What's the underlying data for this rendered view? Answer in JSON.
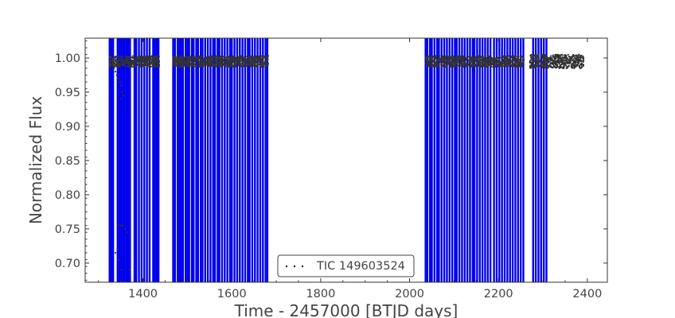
{
  "chart_data": {
    "type": "scatter",
    "title": "",
    "xlabel": "Time - 2457000 [BTJD days]",
    "ylabel": "Normalized Flux",
    "xlim": [
      1270,
      2445
    ],
    "ylim": [
      0.672,
      1.029
    ],
    "x_ticks": [
      1400,
      1600,
      1800,
      2000,
      2200,
      2400
    ],
    "y_ticks": [
      0.7,
      0.75,
      0.8,
      0.85,
      0.9,
      0.95,
      1.0
    ],
    "x_tick_labels": [
      "1400",
      "1600",
      "1800",
      "2000",
      "2200",
      "2400"
    ],
    "y_tick_labels": [
      "0.70",
      "0.75",
      "0.80",
      "0.85",
      "0.90",
      "0.95",
      "1.00"
    ],
    "grid": false,
    "legend_position": "bottom-center",
    "series": [
      {
        "name": "TIC 149603524",
        "color": "#000000",
        "marker": "dot",
        "segments": [
          {
            "x_start": 1325,
            "x_end": 1437,
            "y_center": 0.995,
            "y_spread": 0.008
          },
          {
            "x_start": 1468,
            "x_end": 1682,
            "y_center": 0.995,
            "y_spread": 0.008
          },
          {
            "x_start": 2036,
            "x_end": 2257,
            "y_center": 0.995,
            "y_spread": 0.008
          },
          {
            "x_start": 2270,
            "x_end": 2392,
            "y_center": 0.995,
            "y_spread": 0.01
          }
        ],
        "scatter_outliers": [
          {
            "x": 1335,
            "y": 0.985
          },
          {
            "x": 1338,
            "y": 0.98
          },
          {
            "x": 1341,
            "y": 0.975
          },
          {
            "x": 1345,
            "y": 0.97
          },
          {
            "x": 1348,
            "y": 0.965
          },
          {
            "x": 1351,
            "y": 0.96
          },
          {
            "x": 1353,
            "y": 0.95
          },
          {
            "x": 1356,
            "y": 0.945
          },
          {
            "x": 1350,
            "y": 0.94
          },
          {
            "x": 1345,
            "y": 0.755
          },
          {
            "x": 1350,
            "y": 0.755
          },
          {
            "x": 1355,
            "y": 0.755
          },
          {
            "x": 1360,
            "y": 0.75
          },
          {
            "x": 1365,
            "y": 0.745
          },
          {
            "x": 1342,
            "y": 0.72
          },
          {
            "x": 1346,
            "y": 0.705
          },
          {
            "x": 1352,
            "y": 0.69
          },
          {
            "x": 1370,
            "y": 0.69
          },
          {
            "x": 1338,
            "y": 0.715
          }
        ]
      }
    ],
    "vertical_lines": {
      "color": "#0000ee",
      "x": [
        1325,
        1329,
        1333,
        1343,
        1347,
        1351,
        1355,
        1359,
        1363,
        1367,
        1371,
        1381,
        1385,
        1391,
        1397,
        1403,
        1409,
        1415,
        1423,
        1427,
        1431,
        1435,
        1468,
        1472,
        1478,
        1482,
        1486,
        1490,
        1496,
        1500,
        1504,
        1510,
        1514,
        1520,
        1524,
        1530,
        1534,
        1540,
        1546,
        1552,
        1558,
        1562,
        1568,
        1572,
        1578,
        1584,
        1590,
        1596,
        1600,
        1606,
        1612,
        1618,
        1624,
        1630,
        1636,
        1640,
        1646,
        1652,
        1658,
        1664,
        1670,
        1676,
        1680,
        2036,
        2040,
        2046,
        2050,
        2056,
        2062,
        2066,
        2072,
        2078,
        2084,
        2090,
        2096,
        2102,
        2106,
        2112,
        2118,
        2124,
        2130,
        2136,
        2142,
        2146,
        2152,
        2158,
        2164,
        2170,
        2176,
        2182,
        2190,
        2196,
        2202,
        2208,
        2214,
        2220,
        2226,
        2232,
        2238,
        2244,
        2250,
        2256,
        2278,
        2284,
        2290,
        2296,
        2302,
        2308
      ]
    }
  }
}
